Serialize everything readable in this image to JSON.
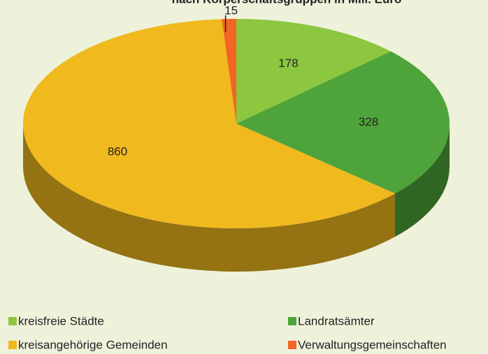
{
  "chart_data": {
    "type": "pie3d",
    "title": "nach Körperschaftsgruppen in Mill. Euro",
    "series": [
      {
        "name": "kreisfreie Städte",
        "color": "#8dc63f",
        "values": [
          178
        ]
      },
      {
        "name": "Landratsämter",
        "color": "#4ea43a",
        "values": [
          328
        ]
      },
      {
        "name": "kreisangehörige Gemeinden",
        "color": "#f0b91e",
        "values": [
          860
        ]
      },
      {
        "name": "Verwaltungsgemeinschaften",
        "color": "#f26522",
        "values": [
          15
        ]
      }
    ]
  }
}
